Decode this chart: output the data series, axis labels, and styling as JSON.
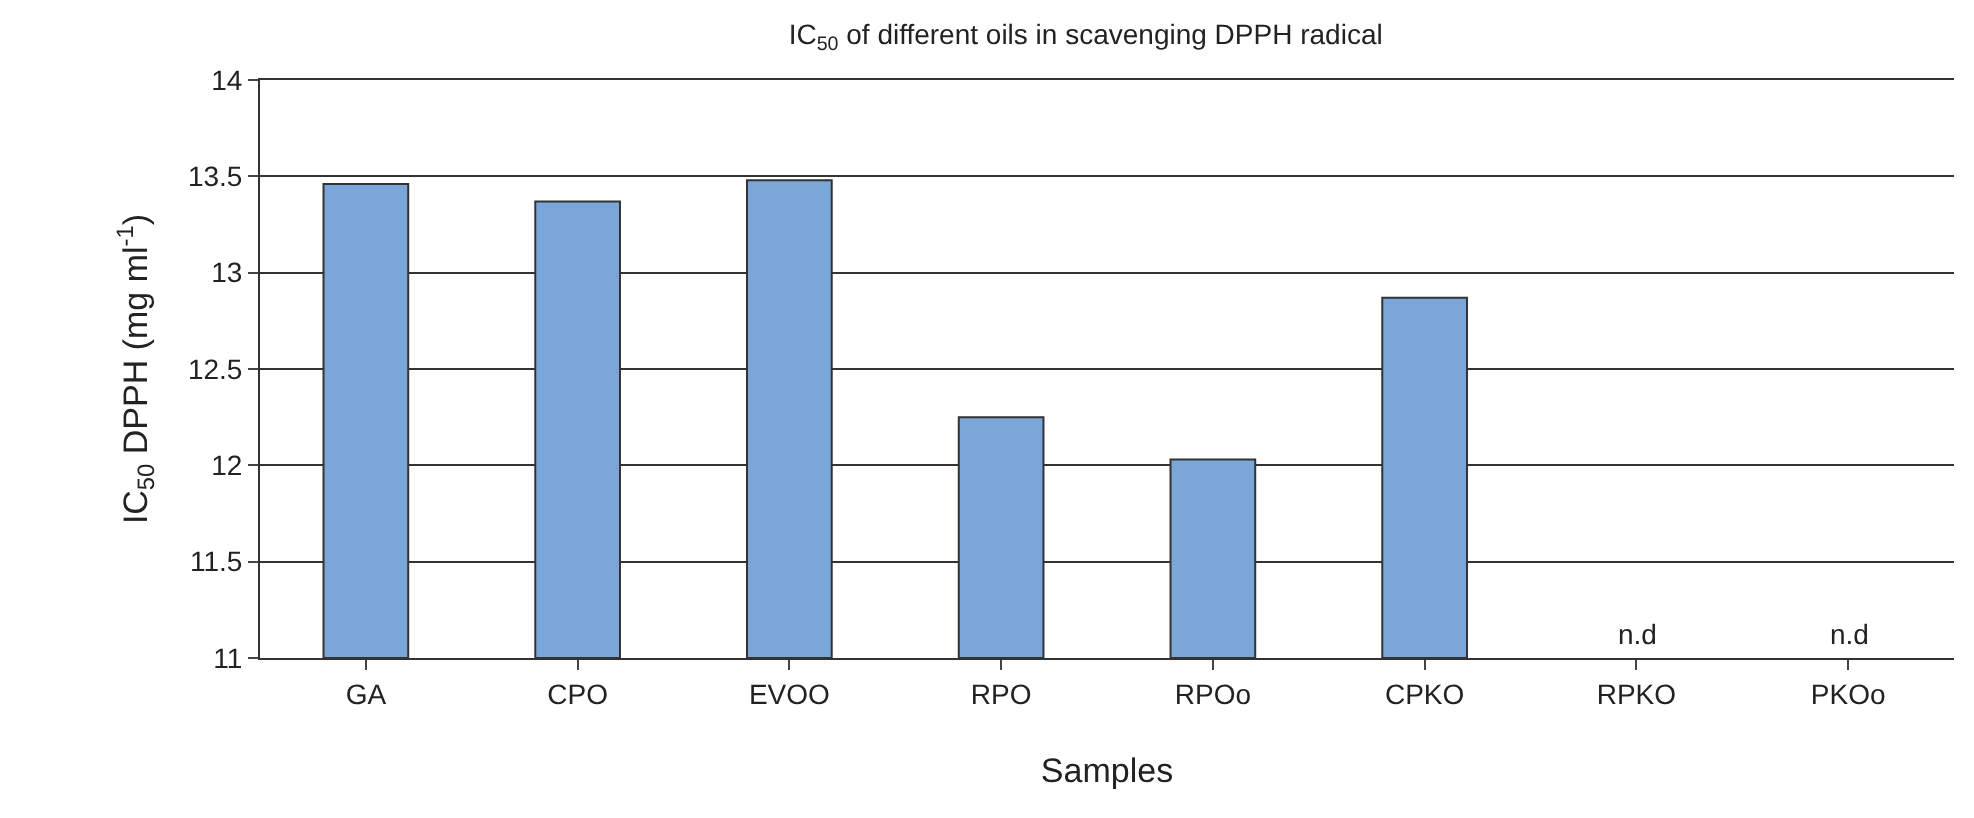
{
  "chart_data": {
    "type": "bar",
    "title": "IC$_{50}$ of different oils in scavenging DPPH radical",
    "xlabel": "Samples",
    "ylabel": "IC$_{50}$ DPPH (mg ml$^{-1}$)",
    "categories": [
      "GA",
      "CPO",
      "EVOO",
      "RPO",
      "RPOo",
      "CPKO",
      "RPKO",
      "PKOo"
    ],
    "values": [
      13.46,
      13.37,
      13.48,
      12.25,
      12.03,
      12.87,
      null,
      null
    ],
    "value_labels": [
      null,
      null,
      null,
      null,
      null,
      null,
      "n.d",
      "n.d"
    ],
    "color": "#7ba7d8",
    "ylim": [
      11,
      14
    ],
    "yticks": [
      11,
      11.5,
      12,
      12.5,
      13,
      13.5,
      14
    ],
    "grid": "y"
  }
}
